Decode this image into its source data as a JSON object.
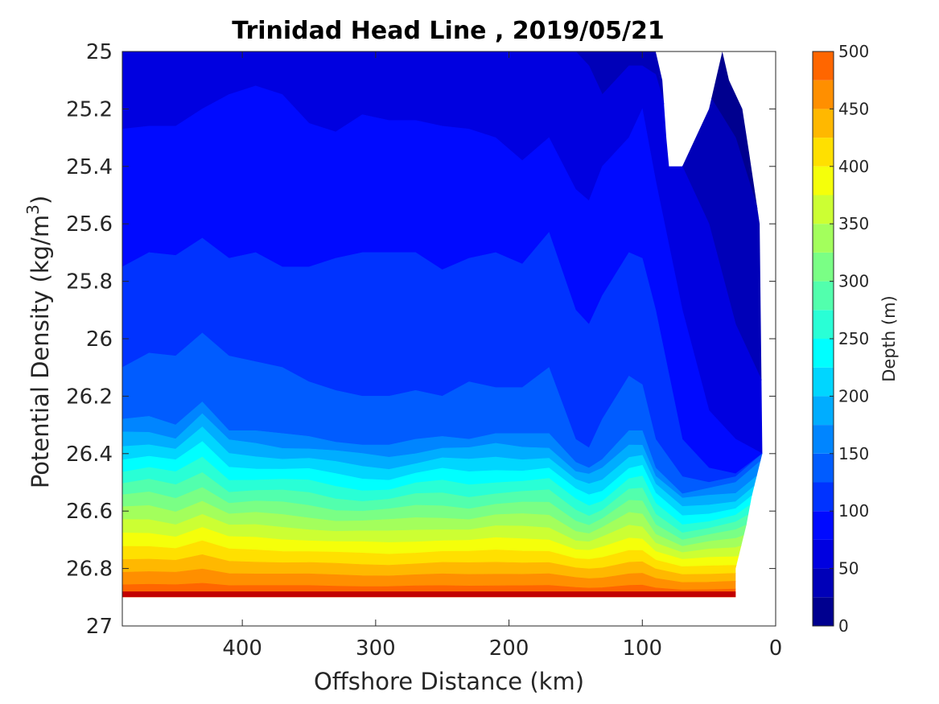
{
  "chart_data": {
    "type": "filled-contour",
    "title": "Trinidad Head Line , 2019/05/21",
    "xlabel": "Offshore Distance (km)",
    "ylabel": "Potential Density (kg/m",
    "ylabel_superscript": "3",
    "ylabel_suffix": ")",
    "x_reversed": true,
    "y_reversed": true,
    "xlim": [
      0,
      490
    ],
    "ylim": [
      25,
      27
    ],
    "x_ticks": [
      400,
      300,
      200,
      100,
      0
    ],
    "x_tick_labels": [
      "400",
      "300",
      "200",
      "100",
      "0"
    ],
    "y_ticks": [
      25,
      25.2,
      25.4,
      25.6,
      25.8,
      26,
      26.2,
      26.4,
      26.6,
      26.8,
      27
    ],
    "y_tick_labels": [
      "25",
      "25.2",
      "25.4",
      "25.6",
      "25.8",
      "26",
      "26.2",
      "26.4",
      "26.6",
      "26.8",
      "27"
    ],
    "colorbar": {
      "label": "Depth (m)",
      "range": [
        0,
        500
      ],
      "tick_values": [
        0,
        50,
        100,
        150,
        200,
        250,
        300,
        350,
        400,
        450,
        500
      ],
      "tick_labels": [
        "0",
        "50",
        "100",
        "150",
        "200",
        "250",
        "300",
        "350",
        "400",
        "450",
        "500"
      ],
      "levels": [
        0,
        25,
        50,
        75,
        100,
        125,
        150,
        175,
        200,
        225,
        250,
        275,
        300,
        325,
        350,
        375,
        400,
        425,
        450,
        475,
        500
      ],
      "colors": [
        "#00008f",
        "#0000b8",
        "#0000e0",
        "#000aff",
        "#0033ff",
        "#005cff",
        "#0085ff",
        "#00adff",
        "#00d6ff",
        "#00ffff",
        "#29ffd6",
        "#52ffad",
        "#7aff85",
        "#a3ff5c",
        "#ccff33",
        "#f5ff0a",
        "#ffe000",
        "#ffb800",
        "#ff8f00",
        "#ff6600",
        "#ff3d00",
        "#ff1400",
        "#eb0000",
        "#c20000",
        "#990000"
      ]
    },
    "grid": false,
    "data_extent": {
      "y_max": 26.9,
      "x_min_at_top": 10,
      "x_min_at_bottom": 30
    },
    "contours": {
      "x": [
        490,
        470,
        450,
        430,
        410,
        390,
        370,
        350,
        330,
        310,
        290,
        270,
        250,
        230,
        210,
        190,
        170,
        150,
        140,
        130,
        110,
        100,
        90,
        70,
        50,
        30,
        10
      ],
      "depth_isolines": [
        {
          "depth": 25,
          "density": [
            25.0,
            25.0,
            25.0,
            25.0,
            25.0,
            25.0,
            25.0,
            25.0,
            25.0,
            25.0,
            25.0,
            25.0,
            25.0,
            25.0,
            25.0,
            25.0,
            25.0,
            25.0,
            25.0,
            25.0,
            25.0,
            25.0,
            25.0,
            25.05,
            25.15,
            25.3,
            25.6
          ]
        },
        {
          "depth": 50,
          "density": [
            25.0,
            25.0,
            25.0,
            25.0,
            25.0,
            25.0,
            25.0,
            25.0,
            25.0,
            25.0,
            25.0,
            25.0,
            25.0,
            25.0,
            25.0,
            25.0,
            25.0,
            25.0,
            25.05,
            25.15,
            25.05,
            25.05,
            25.08,
            25.4,
            25.6,
            25.95,
            26.15
          ]
        },
        {
          "depth": 75,
          "density": [
            25.27,
            25.26,
            25.26,
            25.2,
            25.15,
            25.12,
            25.15,
            25.25,
            25.28,
            25.22,
            25.24,
            25.24,
            25.26,
            25.27,
            25.3,
            25.38,
            25.3,
            25.48,
            25.52,
            25.4,
            25.3,
            25.2,
            25.45,
            25.9,
            26.25,
            26.35,
            26.4
          ]
        },
        {
          "depth": 100,
          "density": [
            25.75,
            25.7,
            25.71,
            25.65,
            25.72,
            25.7,
            25.75,
            25.75,
            25.72,
            25.7,
            25.7,
            25.7,
            25.76,
            25.72,
            25.7,
            25.74,
            25.63,
            25.9,
            25.95,
            25.85,
            25.7,
            25.72,
            25.9,
            26.35,
            26.45,
            26.47,
            26.4
          ]
        },
        {
          "depth": 125,
          "density": [
            26.1,
            26.05,
            26.06,
            25.98,
            26.06,
            26.08,
            26.1,
            26.15,
            26.18,
            26.2,
            26.2,
            26.18,
            26.2,
            26.15,
            26.17,
            26.17,
            26.1,
            26.35,
            26.38,
            26.28,
            26.13,
            26.16,
            26.35,
            26.48,
            26.5,
            26.48,
            26.4
          ]
        },
        {
          "depth": 150,
          "density": [
            26.28,
            26.27,
            26.3,
            26.22,
            26.32,
            26.32,
            26.33,
            26.34,
            26.36,
            26.37,
            26.37,
            26.35,
            26.34,
            26.35,
            26.33,
            26.33,
            26.33,
            26.43,
            26.45,
            26.42,
            26.32,
            26.32,
            26.45,
            26.54,
            26.52,
            26.5,
            26.42
          ]
        }
      ]
    }
  }
}
